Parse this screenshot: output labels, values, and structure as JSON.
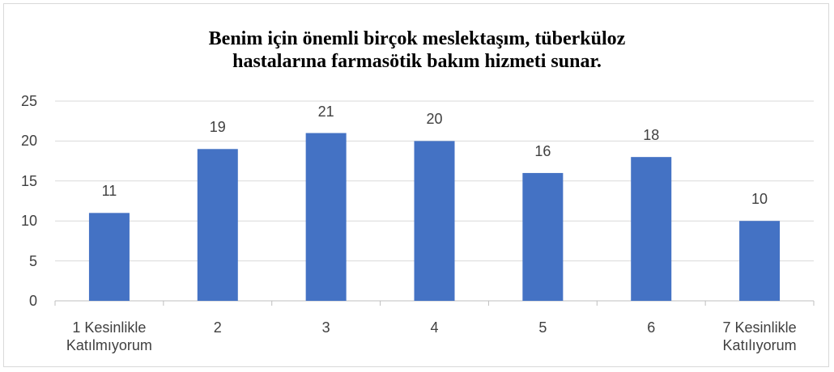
{
  "chart_data": {
    "type": "bar",
    "title": "Benim için önemli birçok meslektaşım, tüberküloz hastalarına farmasötik bakım hizmeti sunar.",
    "categories": [
      "1 Kesinlikle Katılmıyorum",
      "2",
      "3",
      "4",
      "5",
      "6",
      "7 Kesinlikle Katılıyorum"
    ],
    "values": [
      11,
      19,
      21,
      20,
      16,
      18,
      10
    ],
    "color": "#4472c4",
    "ylim": [
      0,
      25
    ],
    "yticks": [
      0,
      5,
      10,
      15,
      20,
      25
    ],
    "grid": true
  }
}
